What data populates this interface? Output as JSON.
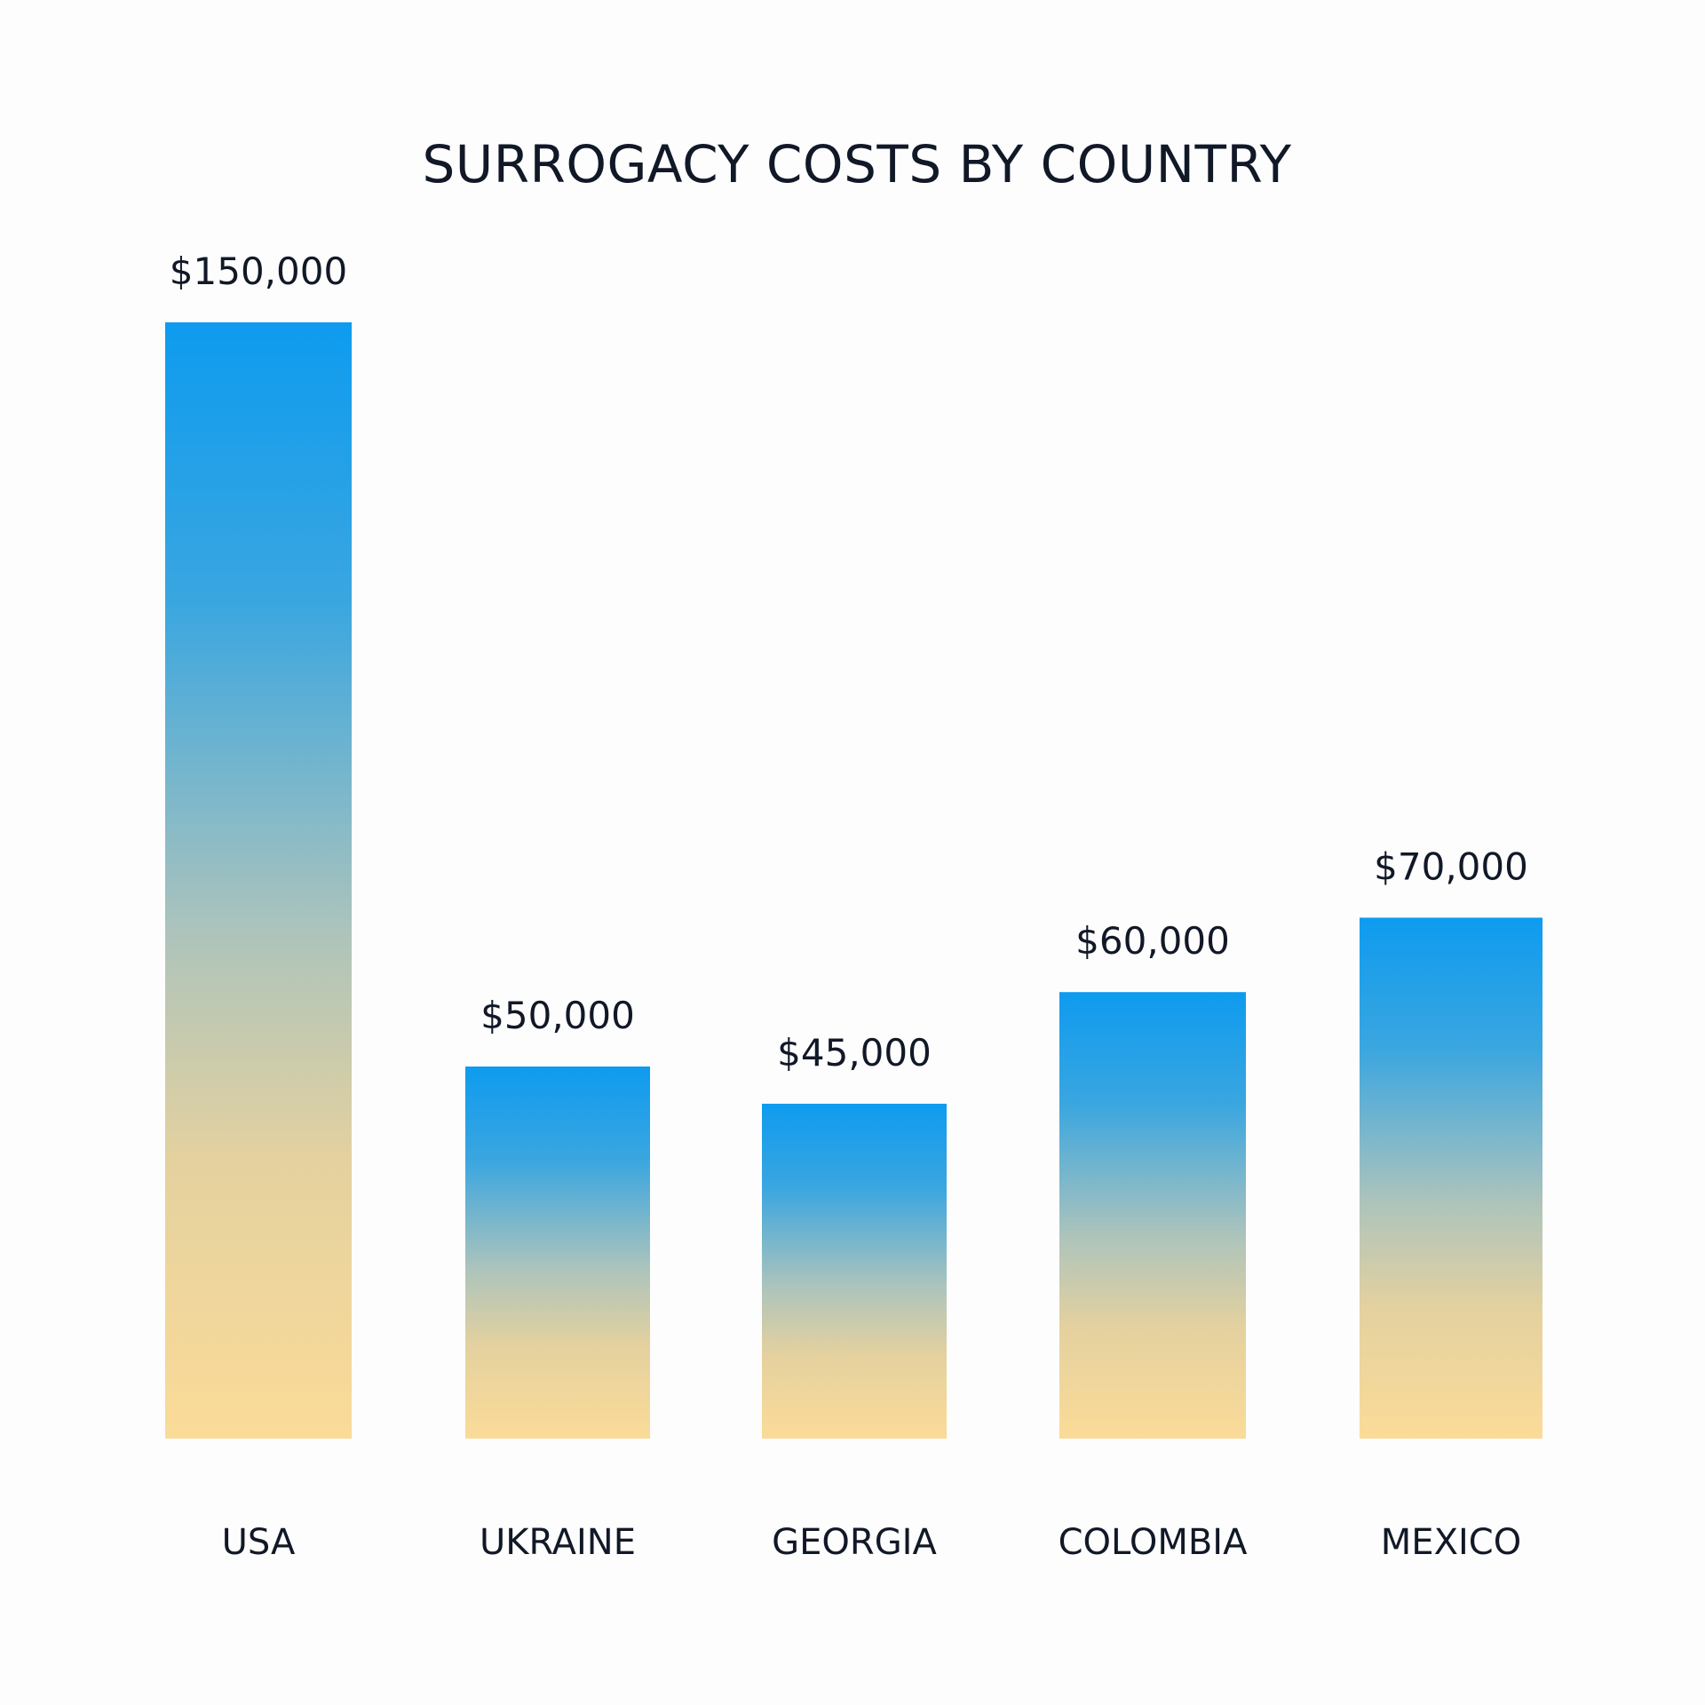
{
  "chart_data": {
    "type": "bar",
    "title": "SURROGACY COSTS BY COUNTRY",
    "xlabel": "",
    "ylabel": "",
    "categories": [
      "USA",
      "UKRAINE",
      "GEORGIA",
      "COLOMBIA",
      "MEXICO"
    ],
    "values": [
      150000,
      50000,
      45000,
      60000,
      70000
    ],
    "value_labels": [
      "$150,000",
      "$50,000",
      "$45,000",
      "$60,000",
      "$70,000"
    ],
    "ylim": [
      0,
      150000
    ],
    "grid": false,
    "legend": "none"
  },
  "colors": {
    "bar_top": "#0e9bef",
    "bar_mid": "#94bfc7",
    "bar_bottom": "#fbdb98",
    "text": "#111827",
    "background": "#fdfdfd"
  }
}
